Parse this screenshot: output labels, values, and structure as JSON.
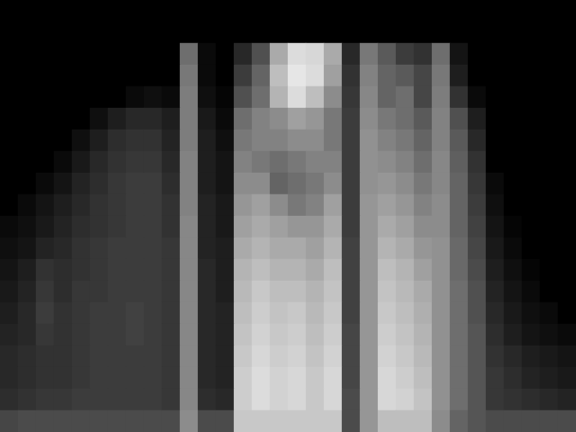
{
  "chart_data": {
    "type": "heatmap",
    "zlim": [
      0,
      255
    ],
    "tick_labels": false,
    "cells": [
      [
        0,
        0,
        0,
        0,
        0,
        0,
        0,
        0,
        0,
        0,
        0,
        0,
        0,
        0,
        0,
        0,
        0,
        0,
        0,
        0,
        0,
        0,
        0,
        0,
        0,
        0,
        0,
        0,
        0,
        0,
        0,
        0
      ],
      [
        0,
        0,
        0,
        0,
        0,
        0,
        0,
        0,
        0,
        0,
        0,
        0,
        0,
        0,
        0,
        0,
        0,
        0,
        0,
        0,
        0,
        0,
        0,
        0,
        0,
        0,
        0,
        0,
        0,
        0,
        0,
        0
      ],
      [
        0,
        0,
        0,
        0,
        0,
        0,
        0,
        0,
        0,
        0,
        110,
        10,
        0,
        40,
        80,
        170,
        220,
        215,
        170,
        40,
        120,
        90,
        60,
        50,
        110,
        20,
        0,
        0,
        0,
        0,
        0,
        0
      ],
      [
        0,
        0,
        0,
        0,
        0,
        0,
        0,
        0,
        0,
        0,
        120,
        10,
        0,
        60,
        100,
        190,
        230,
        220,
        160,
        50,
        130,
        100,
        90,
        70,
        120,
        30,
        0,
        0,
        0,
        0,
        0,
        0
      ],
      [
        0,
        0,
        0,
        0,
        0,
        0,
        0,
        10,
        15,
        10,
        125,
        15,
        5,
        80,
        110,
        180,
        220,
        190,
        140,
        55,
        135,
        100,
        110,
        70,
        125,
        50,
        10,
        0,
        0,
        0,
        0,
        0
      ],
      [
        0,
        0,
        0,
        0,
        0,
        15,
        30,
        40,
        40,
        30,
        125,
        25,
        10,
        110,
        130,
        140,
        160,
        150,
        120,
        60,
        140,
        120,
        110,
        90,
        130,
        80,
        30,
        0,
        0,
        0,
        0,
        0
      ],
      [
        0,
        0,
        0,
        0,
        15,
        30,
        45,
        50,
        50,
        35,
        125,
        30,
        15,
        120,
        130,
        130,
        140,
        140,
        120,
        60,
        145,
        130,
        120,
        100,
        130,
        90,
        40,
        0,
        0,
        0,
        0,
        0
      ],
      [
        0,
        0,
        0,
        10,
        25,
        40,
        50,
        55,
        55,
        40,
        130,
        30,
        20,
        130,
        120,
        110,
        120,
        130,
        130,
        60,
        145,
        140,
        130,
        110,
        135,
        95,
        50,
        0,
        0,
        0,
        0,
        0
      ],
      [
        0,
        0,
        10,
        20,
        35,
        45,
        55,
        60,
        60,
        45,
        130,
        30,
        20,
        140,
        140,
        100,
        110,
        120,
        140,
        60,
        145,
        150,
        140,
        120,
        135,
        100,
        55,
        10,
        0,
        0,
        0,
        0
      ],
      [
        0,
        10,
        20,
        30,
        40,
        50,
        55,
        60,
        60,
        50,
        130,
        35,
        25,
        150,
        160,
        140,
        120,
        130,
        160,
        60,
        150,
        160,
        150,
        130,
        140,
        100,
        60,
        15,
        0,
        0,
        0,
        0
      ],
      [
        10,
        15,
        25,
        35,
        45,
        50,
        55,
        60,
        60,
        50,
        135,
        35,
        25,
        160,
        170,
        160,
        150,
        150,
        170,
        60,
        150,
        170,
        160,
        140,
        140,
        100,
        65,
        20,
        5,
        0,
        0,
        0
      ],
      [
        15,
        20,
        35,
        40,
        50,
        55,
        60,
        60,
        60,
        55,
        135,
        35,
        30,
        170,
        180,
        170,
        170,
        160,
        180,
        65,
        150,
        180,
        170,
        150,
        145,
        105,
        70,
        25,
        10,
        0,
        0,
        0
      ],
      [
        20,
        30,
        50,
        45,
        50,
        55,
        60,
        60,
        60,
        55,
        135,
        40,
        30,
        180,
        190,
        180,
        180,
        170,
        190,
        65,
        150,
        190,
        180,
        160,
        145,
        105,
        75,
        30,
        15,
        5,
        0,
        0
      ],
      [
        25,
        35,
        55,
        45,
        55,
        55,
        60,
        60,
        60,
        55,
        135,
        40,
        30,
        185,
        200,
        190,
        190,
        180,
        195,
        65,
        150,
        195,
        185,
        170,
        145,
        110,
        80,
        35,
        20,
        10,
        0,
        0
      ],
      [
        30,
        40,
        60,
        50,
        55,
        60,
        60,
        65,
        60,
        55,
        135,
        40,
        35,
        190,
        205,
        195,
        200,
        185,
        200,
        65,
        150,
        200,
        190,
        175,
        145,
        110,
        80,
        40,
        25,
        15,
        10,
        0
      ],
      [
        35,
        40,
        55,
        50,
        55,
        60,
        60,
        65,
        60,
        55,
        135,
        40,
        35,
        195,
        210,
        200,
        205,
        190,
        205,
        70,
        150,
        205,
        195,
        180,
        145,
        110,
        85,
        45,
        30,
        20,
        15,
        10
      ],
      [
        40,
        45,
        50,
        50,
        55,
        60,
        60,
        60,
        60,
        55,
        135,
        40,
        35,
        200,
        215,
        205,
        210,
        195,
        210,
        70,
        150,
        210,
        200,
        185,
        145,
        110,
        85,
        50,
        40,
        30,
        25,
        20
      ],
      [
        40,
        45,
        50,
        50,
        55,
        60,
        60,
        60,
        60,
        55,
        135,
        40,
        35,
        205,
        220,
        210,
        215,
        200,
        215,
        70,
        150,
        215,
        205,
        190,
        145,
        110,
        85,
        55,
        45,
        35,
        30,
        25
      ],
      [
        45,
        50,
        55,
        55,
        60,
        60,
        60,
        60,
        60,
        55,
        135,
        45,
        40,
        205,
        220,
        210,
        215,
        200,
        215,
        75,
        150,
        215,
        210,
        195,
        145,
        110,
        85,
        55,
        50,
        45,
        40,
        35
      ],
      [
        70,
        75,
        75,
        75,
        75,
        75,
        75,
        75,
        75,
        75,
        140,
        75,
        75,
        200,
        200,
        200,
        200,
        200,
        200,
        75,
        150,
        190,
        190,
        190,
        140,
        100,
        85,
        75,
        75,
        75,
        75,
        75
      ]
    ]
  }
}
